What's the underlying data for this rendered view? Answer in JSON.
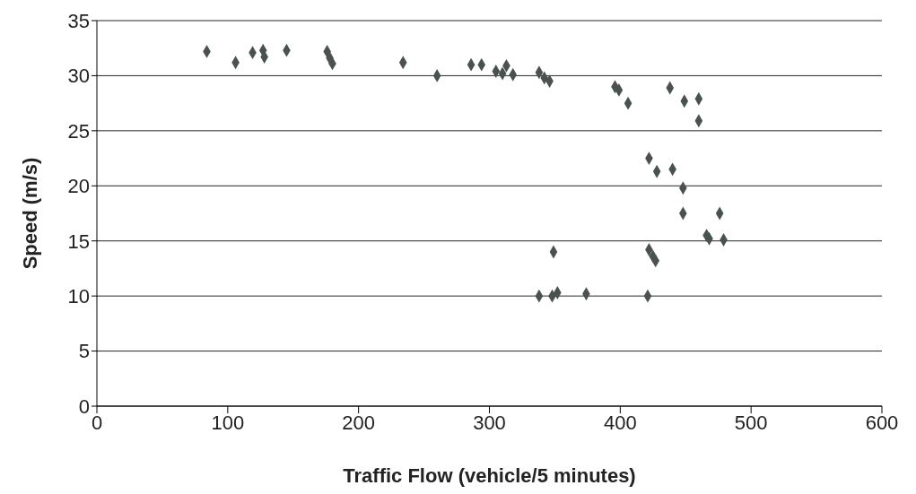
{
  "chart_data": {
    "type": "scatter",
    "xlabel": "Traffic Flow (vehicle/5 minutes)",
    "ylabel": "Speed (m/s)",
    "x": [
      84,
      106,
      119,
      127,
      128,
      145,
      176,
      178,
      180,
      234,
      260,
      286,
      294,
      305,
      310,
      313,
      318,
      338,
      342,
      346,
      396,
      399,
      406,
      438,
      449,
      460,
      460,
      422,
      428,
      440,
      448,
      448,
      476,
      466,
      468,
      479,
      349,
      422,
      425,
      427,
      338,
      348,
      352,
      374,
      421
    ],
    "values": [
      32.2,
      31.2,
      32.1,
      32.3,
      31.7,
      32.3,
      32.2,
      31.6,
      31.1,
      31.2,
      30,
      31,
      31,
      30.4,
      30.2,
      30.9,
      30.1,
      30.3,
      29.8,
      29.5,
      29,
      28.7,
      27.5,
      28.9,
      27.7,
      27.9,
      25.9,
      22.5,
      21.3,
      21.5,
      19.8,
      17.5,
      17.5,
      15.5,
      15.2,
      15.1,
      14,
      14.2,
      13.6,
      13.2,
      10,
      10,
      10.3,
      10.2,
      10
    ],
    "color": "#4a5250",
    "marker": "diamond",
    "xlim": [
      0,
      600
    ],
    "xticks": [
      0,
      100,
      200,
      300,
      400,
      500,
      600
    ],
    "ylim": [
      0,
      35
    ],
    "yticks": [
      0,
      5,
      10,
      15,
      20,
      25,
      30,
      35
    ],
    "grid": "y"
  }
}
